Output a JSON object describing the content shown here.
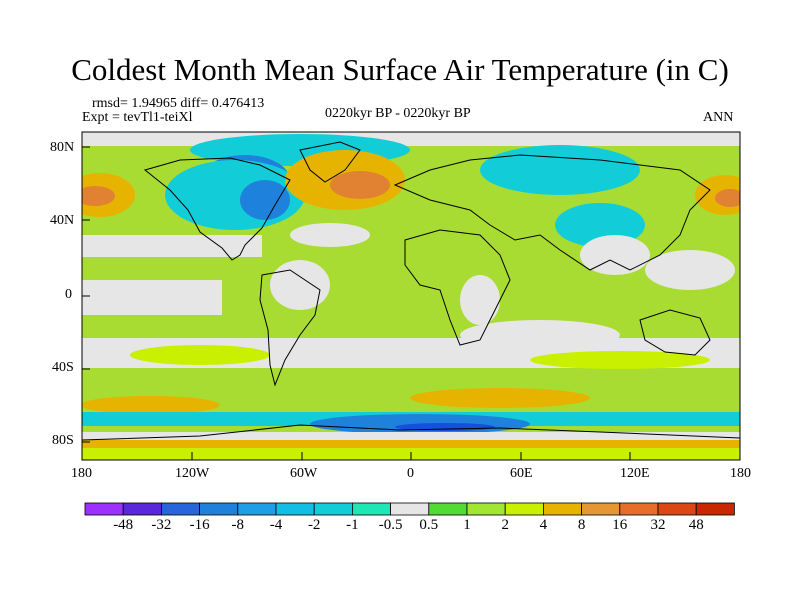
{
  "title": "Coldest Month Mean Surface Air Temperature (in C)",
  "stats": {
    "rmsd_line": "rmsd= 1.94965 diff= 0.476413",
    "expt_line": "Expt = tevTl1-teiXl"
  },
  "period_label": "0220kyr BP - 0220kyr BP",
  "season_label": "ANN",
  "map": {
    "x_ticks": [
      "180",
      "120W",
      "60W",
      "0",
      "60E",
      "120E",
      "180"
    ],
    "y_ticks": [
      "80N",
      "40N",
      "0",
      "40S",
      "80S"
    ],
    "region_colors": {
      "ocean_default": "#a8dc32",
      "near_zero": "#e6e6e6",
      "light_green": "#c8f000",
      "cool": "#12cdd8",
      "cold": "#1e82dc",
      "warm": "#e6b400",
      "hot": "#e08232",
      "deep_cold": "#1450dc",
      "land_outline": "#000000"
    }
  },
  "colorbar": {
    "labels": [
      "-48",
      "-32",
      "-16",
      "-8",
      "-4",
      "-2",
      "-1",
      "-0.5",
      "0.5",
      "1",
      "2",
      "4",
      "8",
      "16",
      "32",
      "48"
    ],
    "colors": [
      "#9b30ff",
      "#5a28dc",
      "#2864dc",
      "#1e82dc",
      "#1e9ee6",
      "#12bee6",
      "#12cdd8",
      "#1ee6b4",
      "#e6e6e6",
      "#50dc32",
      "#a0e632",
      "#c8f000",
      "#e6b400",
      "#e69632",
      "#e66e28",
      "#dc4614",
      "#c82800"
    ]
  }
}
